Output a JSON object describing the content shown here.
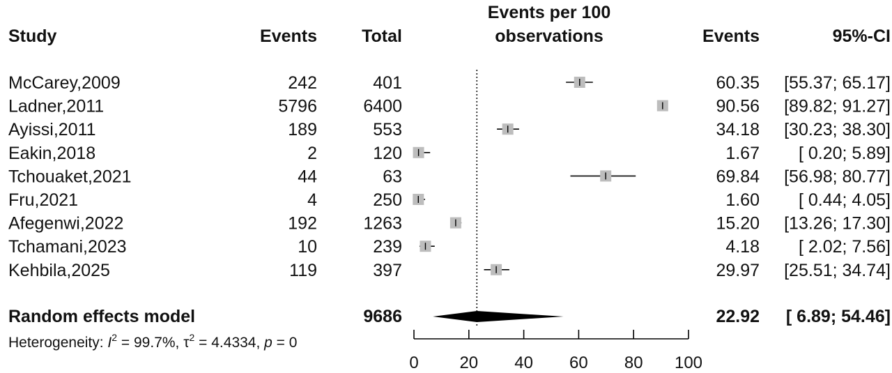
{
  "chart_data": {
    "type": "forest",
    "headers": {
      "study": "Study",
      "events": "Events",
      "total": "Total",
      "axis_title_line1": "Events per 100",
      "axis_title_line2": "observations",
      "events_est": "Events",
      "ci": "95%-CI"
    },
    "studies": [
      {
        "name": "McCarey,2009",
        "events": "242",
        "total": "401",
        "est": 60.35,
        "lo": 55.37,
        "hi": 65.17,
        "est_label": "60.35",
        "ci_label": "[55.37; 65.17]"
      },
      {
        "name": "Ladner,2011",
        "events": "5796",
        "total": "6400",
        "est": 90.56,
        "lo": 89.82,
        "hi": 91.27,
        "est_label": "90.56",
        "ci_label": "[89.82; 91.27]"
      },
      {
        "name": "Ayissi,2011",
        "events": "189",
        "total": "553",
        "est": 34.18,
        "lo": 30.23,
        "hi": 38.3,
        "est_label": "34.18",
        "ci_label": "[30.23; 38.30]"
      },
      {
        "name": "Eakin,2018",
        "events": "2",
        "total": "120",
        "est": 1.67,
        "lo": 0.2,
        "hi": 5.89,
        "est_label": "1.67",
        "ci_label": "[ 0.20;  5.89]"
      },
      {
        "name": "Tchouaket,2021",
        "events": "44",
        "total": "63",
        "est": 69.84,
        "lo": 56.98,
        "hi": 80.77,
        "est_label": "69.84",
        "ci_label": "[56.98; 80.77]"
      },
      {
        "name": "Fru,2021",
        "events": "4",
        "total": "250",
        "est": 1.6,
        "lo": 0.44,
        "hi": 4.05,
        "est_label": "1.60",
        "ci_label": "[ 0.44;  4.05]"
      },
      {
        "name": "Afegenwi,2022",
        "events": "192",
        "total": "1263",
        "est": 15.2,
        "lo": 13.26,
        "hi": 17.3,
        "est_label": "15.20",
        "ci_label": "[13.26; 17.30]"
      },
      {
        "name": "Tchamani,2023",
        "events": "10",
        "total": "239",
        "est": 4.18,
        "lo": 2.02,
        "hi": 7.56,
        "est_label": "4.18",
        "ci_label": "[ 2.02;  7.56]"
      },
      {
        "name": "Kehbila,2025",
        "events": "119",
        "total": "397",
        "est": 29.97,
        "lo": 25.51,
        "hi": 34.74,
        "est_label": "29.97",
        "ci_label": "[25.51; 34.74]"
      }
    ],
    "summary": {
      "name": "Random effects model",
      "total": "9686",
      "est": 22.92,
      "lo": 6.89,
      "hi": 54.46,
      "est_label": "22.92",
      "ci_label": "[ 6.89; 54.46]"
    },
    "heterogeneity": {
      "prefix": "Heterogeneity: ",
      "i2_symbol": "I",
      "i2_sup": "2",
      "i2_value": " = 99.7%, ",
      "tau_symbol": "τ",
      "tau_sup": "2",
      "tau_value": " = 4.4334, ",
      "p_symbol": "p",
      "p_value": " = 0"
    },
    "x_axis": {
      "range": [
        0,
        100
      ],
      "ticks": [
        0,
        20,
        40,
        60,
        80,
        100
      ],
      "tick_labels": [
        "0",
        "20",
        "40",
        "60",
        "80",
        "100"
      ]
    },
    "reference_line": 22.92,
    "colors": {
      "box": "#bdbdbd",
      "line": "#000000",
      "diamond": "#000000"
    }
  }
}
